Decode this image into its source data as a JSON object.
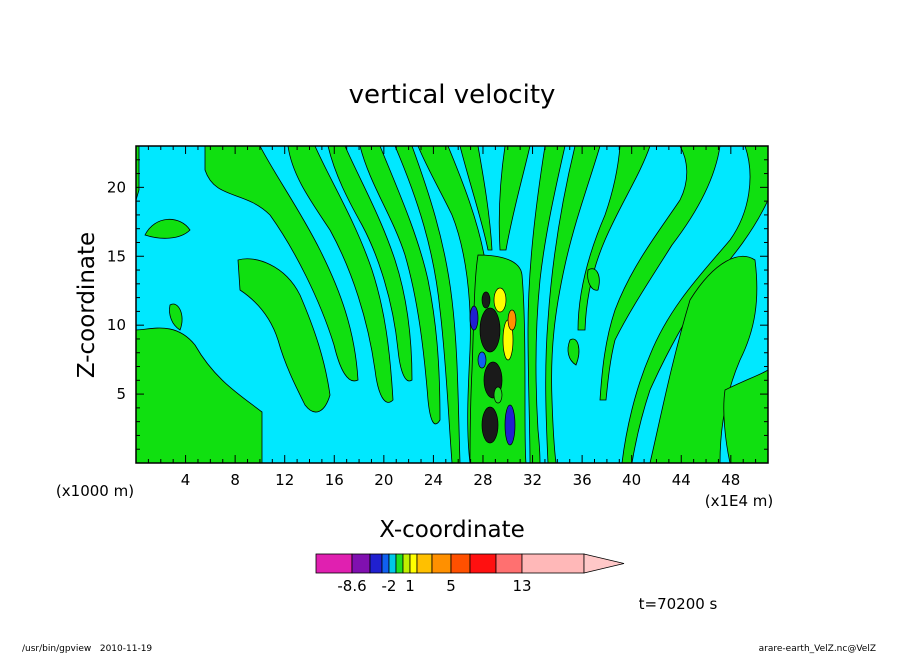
{
  "chart_data": {
    "type": "heatmap",
    "title": "vertical velocity",
    "xlabel": "X-coordinate",
    "ylabel": "Z-coordinate",
    "x_unit_label": "(x1E4 m)",
    "y_unit_label": "(x1000 m)",
    "xlim": [
      0,
      51
    ],
    "ylim": [
      0,
      23
    ],
    "x_ticks": [
      4,
      8,
      12,
      16,
      20,
      24,
      28,
      32,
      36,
      40,
      44,
      48
    ],
    "y_ticks": [
      5,
      10,
      15,
      20
    ],
    "time_label": "t=70200 s",
    "colorbar": {
      "tick_labels": [
        {
          "value": -8.6,
          "label": "-8.6"
        },
        {
          "value": -2,
          "label": "-2"
        },
        {
          "value": 1,
          "label": "1"
        },
        {
          "value": 5,
          "label": "5"
        },
        {
          "value": 13,
          "label": "13"
        }
      ],
      "colors": [
        "#e020b0",
        "#8010b0",
        "#2020d0",
        "#1060f0",
        "#00c8e8",
        "#20e020",
        "#c0f000",
        "#ffff00",
        "#ffc000",
        "#ff9000",
        "#ff5000",
        "#ff1010",
        "#ff7070",
        "#ffb8b8",
        "#ffc8c8"
      ],
      "extend": "max"
    },
    "background_color": "#00e8ff",
    "positive_color": "#10e010"
  },
  "footer": {
    "left": "/usr/bin/gpview   2010-11-19",
    "right": "arare-earth_VelZ.nc@VelZ"
  }
}
